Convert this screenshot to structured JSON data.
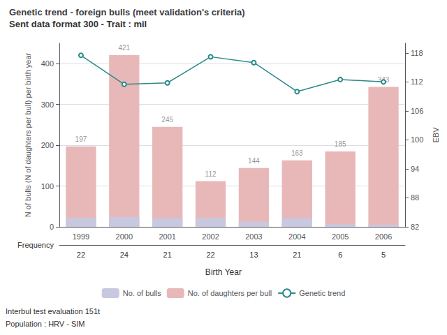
{
  "chart_data": {
    "type": "bar",
    "title": "Genetic trend - foreign bulls (meet validation's criteria)",
    "subtitle": "Sent data format 300 - Trait : mil",
    "annotations": [
      "Interbul test evaluation 151t",
      "Population : HRV - SIM"
    ],
    "xlabel": "Birth Year",
    "ylabel": "N of bulls (N of daughters per bull) per birth year",
    "y2label": "EBV",
    "categories": [
      "1999",
      "2000",
      "2001",
      "2002",
      "2003",
      "2004",
      "2005",
      "2006"
    ],
    "series": [
      {
        "name": "No. of bulls",
        "type": "bar",
        "color": "#c8c8e0",
        "values": [
          22,
          24,
          21,
          22,
          13,
          21,
          6,
          5
        ]
      },
      {
        "name": "No. of daughters per bull",
        "type": "bar",
        "color": "#e8b8b8",
        "data_labels": true,
        "values": [
          197,
          421,
          245,
          112,
          144,
          163,
          185,
          343
        ]
      },
      {
        "name": "Genetic trend",
        "type": "line",
        "color": "#2a8a8a",
        "axis": "y2",
        "values": [
          117.5,
          111.5,
          111.8,
          117.2,
          116.0,
          110.0,
          112.5,
          112.0
        ]
      }
    ],
    "ylim": [
      0,
      450
    ],
    "yticks": [
      0,
      100,
      200,
      300,
      400
    ],
    "y2lim": [
      82,
      120
    ],
    "y2ticks": [
      82,
      88,
      94,
      100,
      106,
      112,
      118
    ],
    "grid": true,
    "legend": "bottom",
    "frequency_label": "Frequency",
    "frequency": [
      22,
      24,
      21,
      22,
      13,
      21,
      6,
      5
    ]
  }
}
